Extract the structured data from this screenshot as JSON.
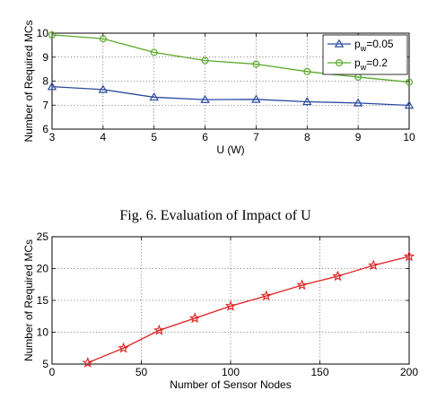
{
  "chart_data": [
    {
      "type": "line",
      "caption": "Fig. 6.   Evaluation of Impact of U",
      "xlabel": "U (W)",
      "ylabel": "Number of Required MCs",
      "xlim": [
        3,
        10
      ],
      "ylim": [
        6,
        10
      ],
      "xticks": [
        3,
        4,
        5,
        6,
        7,
        8,
        9,
        10
      ],
      "yticks": [
        6,
        7,
        8,
        9,
        10
      ],
      "grid": true,
      "legend_position": "top-right",
      "x": [
        3,
        4,
        5,
        6,
        7,
        8,
        9,
        10
      ],
      "series": [
        {
          "name": "p_w=0.05",
          "legend": {
            "main": "p",
            "sub": "w",
            "tail": "=0.05"
          },
          "marker": "triangle",
          "color": "#2a4aa0",
          "values": [
            7.77,
            7.65,
            7.33,
            7.23,
            7.24,
            7.14,
            7.09,
            6.99
          ]
        },
        {
          "name": "p_w=0.2",
          "legend": {
            "main": "p",
            "sub": "w",
            "tail": "=0.2"
          },
          "marker": "circle",
          "color": "#5aaa2a",
          "values": [
            9.93,
            9.77,
            9.2,
            8.86,
            8.71,
            8.4,
            8.17,
            7.96
          ]
        }
      ]
    },
    {
      "type": "line",
      "xlabel": "Number of Sensor Nodes",
      "ylabel": "Number of Required MCs",
      "xlim": [
        0,
        200
      ],
      "ylim": [
        5,
        25
      ],
      "xticks": [
        0,
        50,
        100,
        150,
        200
      ],
      "yticks": [
        5,
        10,
        15,
        20,
        25
      ],
      "grid": true,
      "x": [
        20,
        40,
        60,
        80,
        100,
        120,
        140,
        160,
        180,
        200
      ],
      "series": [
        {
          "marker": "star",
          "color": "#e02020",
          "values": [
            5.2,
            7.5,
            10.3,
            12.2,
            14.1,
            15.7,
            17.4,
            18.8,
            20.5,
            21.9
          ]
        }
      ]
    }
  ]
}
